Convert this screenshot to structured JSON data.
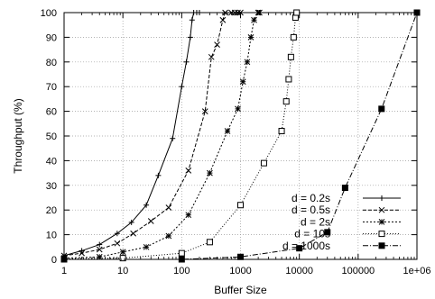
{
  "chart_data": {
    "type": "line",
    "xlabel": "Buffer Size",
    "ylabel": "Throughput (%)",
    "xscale": "log",
    "xlim": [
      1,
      1000000
    ],
    "ylim": [
      0,
      100
    ],
    "x_ticks": [
      {
        "value": 1,
        "label": "1"
      },
      {
        "value": 10,
        "label": "10"
      },
      {
        "value": 100,
        "label": "100"
      },
      {
        "value": 1000,
        "label": "1000"
      },
      {
        "value": 10000,
        "label": "10000"
      },
      {
        "value": 100000,
        "label": "100000"
      },
      {
        "value": 1000000,
        "label": "1e+06"
      }
    ],
    "y_ticks": [
      {
        "value": 0,
        "label": "0"
      },
      {
        "value": 10,
        "label": "10"
      },
      {
        "value": 20,
        "label": "20"
      },
      {
        "value": 30,
        "label": "30"
      },
      {
        "value": 40,
        "label": "40"
      },
      {
        "value": 50,
        "label": "50"
      },
      {
        "value": 60,
        "label": "60"
      },
      {
        "value": 70,
        "label": "70"
      },
      {
        "value": 80,
        "label": "80"
      },
      {
        "value": 90,
        "label": "90"
      },
      {
        "value": 100,
        "label": "100"
      }
    ],
    "grid": true,
    "legend_position": "bottom-right",
    "series": [
      {
        "name": "d = 0.2s",
        "marker": "plus",
        "dash": "none",
        "points": [
          [
            1,
            1.5
          ],
          [
            2,
            3.5
          ],
          [
            4,
            6
          ],
          [
            8,
            10.5
          ],
          [
            14,
            15
          ],
          [
            25,
            22
          ],
          [
            40,
            34
          ],
          [
            70,
            49
          ],
          [
            100,
            70
          ],
          [
            120,
            80
          ],
          [
            140,
            90
          ],
          [
            150,
            97
          ],
          [
            160,
            100
          ],
          [
            180,
            100
          ],
          [
            200,
            100
          ]
        ]
      },
      {
        "name": "d = 0.5s",
        "marker": "x",
        "dash": "4,2",
        "points": [
          [
            1,
            1.5
          ],
          [
            2,
            2.5
          ],
          [
            4,
            4
          ],
          [
            8,
            6.5
          ],
          [
            15,
            10.5
          ],
          [
            30,
            15.5
          ],
          [
            60,
            21
          ],
          [
            130,
            36
          ],
          [
            250,
            60
          ],
          [
            320,
            82
          ],
          [
            400,
            87
          ],
          [
            500,
            97
          ],
          [
            550,
            100
          ],
          [
            700,
            100
          ],
          [
            800,
            100
          ],
          [
            900,
            100
          ],
          [
            1000,
            100
          ]
        ]
      },
      {
        "name": "d = 2s",
        "marker": "star",
        "dash": "2,2",
        "points": [
          [
            1,
            0.5
          ],
          [
            4,
            1
          ],
          [
            10,
            3
          ],
          [
            25,
            5
          ],
          [
            60,
            9.5
          ],
          [
            130,
            18
          ],
          [
            300,
            35
          ],
          [
            600,
            52
          ],
          [
            900,
            61
          ],
          [
            1100,
            72
          ],
          [
            1300,
            80
          ],
          [
            1500,
            90
          ],
          [
            1700,
            97
          ],
          [
            2000,
            100
          ],
          [
            2100,
            100
          ]
        ]
      },
      {
        "name": "d = 10s",
        "marker": "square-open",
        "dash": "1,2",
        "points": [
          [
            1,
            0.2
          ],
          [
            10,
            0.5
          ],
          [
            100,
            2.5
          ],
          [
            300,
            7
          ],
          [
            1000,
            22
          ],
          [
            2500,
            39
          ],
          [
            5000,
            52
          ],
          [
            6000,
            64
          ],
          [
            6600,
            73
          ],
          [
            7200,
            82
          ],
          [
            8000,
            90
          ],
          [
            8600,
            98
          ],
          [
            9000,
            100
          ]
        ]
      },
      {
        "name": "d = 1000s",
        "marker": "square-filled",
        "dash": "6,2,1,2",
        "points": [
          [
            1,
            0
          ],
          [
            100,
            0
          ],
          [
            1000,
            1
          ],
          [
            10000,
            4.5
          ],
          [
            30000,
            11
          ],
          [
            60000,
            29
          ],
          [
            250000,
            61
          ],
          [
            1000000,
            100
          ]
        ]
      }
    ]
  }
}
